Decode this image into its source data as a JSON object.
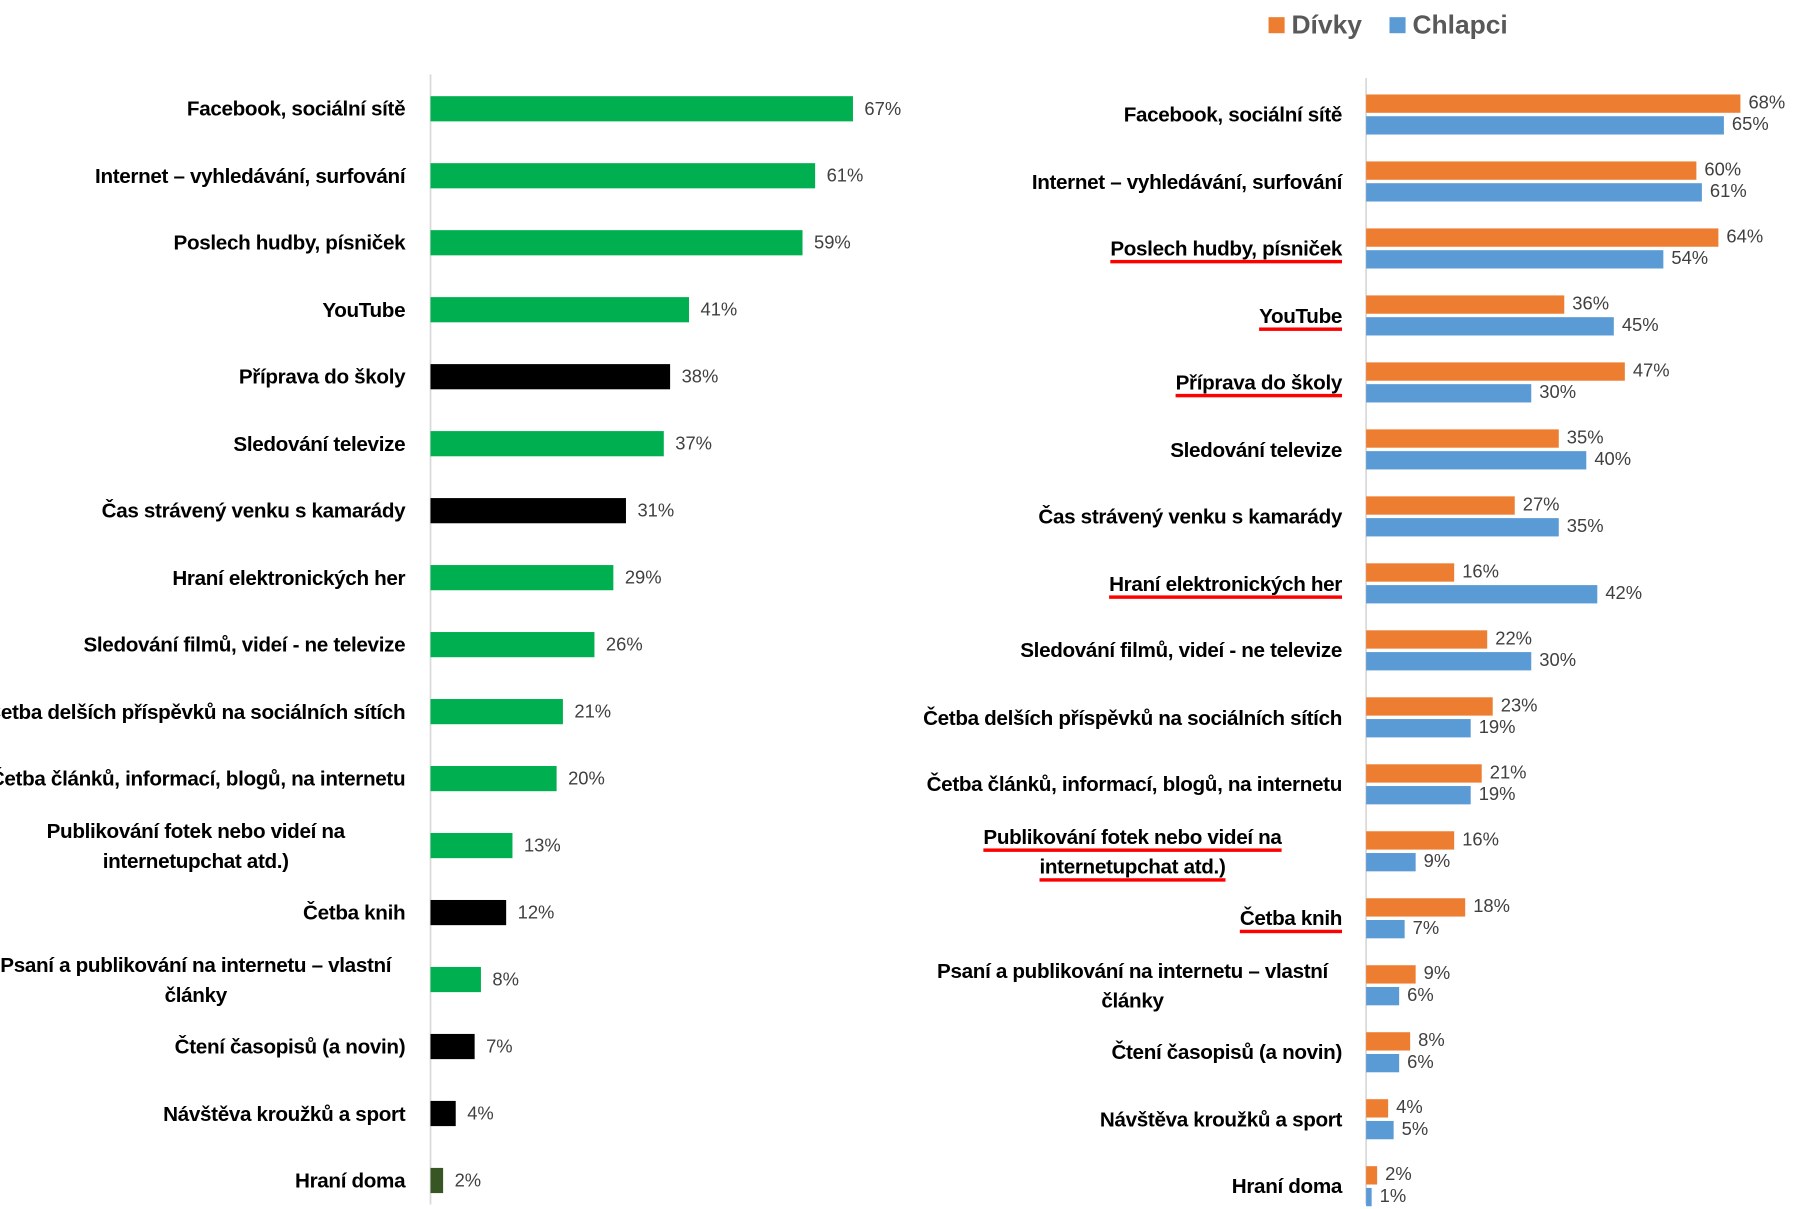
{
  "chart_data": [
    {
      "type": "bar",
      "categories": [
        "Facebook, sociální sítě",
        "Internet – vyhledávání, surfování",
        "Poslech hudby, písniček",
        "YouTube",
        "Příprava do školy",
        "Sledování televize",
        "Čas strávený venku s kamarády",
        "Hraní elektronických her",
        "Sledování filmů, videí - ne televize",
        "Četba delších příspěvků na sociálních sítích",
        "Četba článků, informací, blogů, na internetu",
        "Publikování fotek nebo videí na internetupchat atd.)",
        "Četba knih",
        "Psaní a publikování na internetu – vlastní články",
        "Čtení časopisů (a novin)",
        "Návštěva kroužků a sport",
        "Hraní doma"
      ],
      "values": [
        67,
        61,
        59,
        41,
        38,
        37,
        31,
        29,
        26,
        21,
        20,
        13,
        12,
        8,
        7,
        4,
        2
      ],
      "value_labels": [
        "67%",
        "61%",
        "59%",
        "41%",
        "38%",
        "37%",
        "31%",
        "29%",
        "26%",
        "21%",
        "20%",
        "13%",
        "12%",
        "8%",
        "7%",
        "4%",
        "2%"
      ],
      "colors": [
        "#00b050",
        "#00b050",
        "#00b050",
        "#00b050",
        "#000000",
        "#00b050",
        "#000000",
        "#00b050",
        "#00b050",
        "#00b050",
        "#00b050",
        "#00b050",
        "#000000",
        "#00b050",
        "#000000",
        "#000000",
        "#375623"
      ],
      "xlim": [
        0,
        80
      ]
    },
    {
      "type": "grouped_bar",
      "categories": [
        "Facebook, sociální sítě",
        "Internet – vyhledávání, surfování",
        "Poslech hudby, písniček",
        "YouTube",
        "Příprava do školy",
        "Sledování televize",
        "Čas strávený venku s kamarády",
        "Hraní elektronických her",
        "Sledování filmů, videí - ne televize",
        "Četba delších příspěvků na sociálních sítích",
        "Četba článků, informací, blogů, na internetu",
        "Publikování fotek nebo videí na internetupchat atd.)",
        "Četba knih",
        "Psaní a publikování na internetu – vlastní články",
        "Čtení časopisů (a novin)",
        "Návštěva kroužků a sport",
        "Hraní doma"
      ],
      "series": [
        {
          "name": "Dívky",
          "color": "#ed7d31",
          "values": [
            68,
            60,
            64,
            36,
            47,
            35,
            27,
            16,
            22,
            23,
            21,
            16,
            18,
            9,
            8,
            4,
            2
          ],
          "value_labels": [
            "68%",
            "60%",
            "64%",
            "36%",
            "47%",
            "35%",
            "27%",
            "16%",
            "22%",
            "23%",
            "21%",
            "16%",
            "18%",
            "9%",
            "8%",
            "4%",
            "2%"
          ]
        },
        {
          "name": "Chlapci",
          "color": "#5b9bd5",
          "values": [
            65,
            61,
            54,
            45,
            30,
            40,
            35,
            42,
            30,
            19,
            19,
            9,
            7,
            6,
            6,
            5,
            1
          ],
          "value_labels": [
            "65%",
            "61%",
            "54%",
            "45%",
            "30%",
            "40%",
            "35%",
            "42%",
            "30%",
            "19%",
            "19%",
            "9%",
            "7%",
            "6%",
            "6%",
            "5%",
            "1%"
          ]
        }
      ],
      "xlim": [
        0,
        75
      ],
      "legend": "top-right",
      "underlined": [
        2,
        3,
        4,
        7,
        11,
        12
      ]
    }
  ]
}
